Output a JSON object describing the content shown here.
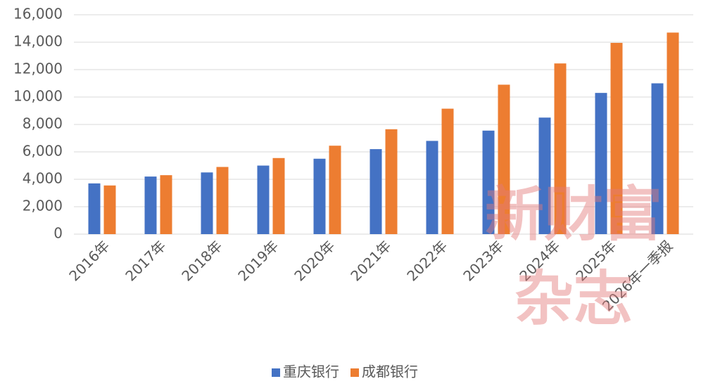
{
  "chart_data": {
    "type": "bar",
    "categories": [
      "2016年",
      "2017年",
      "2018年",
      "2019年",
      "2020年",
      "2021年",
      "2022年",
      "2023年",
      "2024年",
      "2025年",
      "2026年一季报"
    ],
    "series": [
      {
        "name": "重庆银行",
        "color": "#4472c4",
        "values": [
          3700,
          4200,
          4500,
          5000,
          5500,
          6200,
          6800,
          7550,
          8500,
          10300,
          11000
        ]
      },
      {
        "name": "成都银行",
        "color": "#ed7d31",
        "values": [
          3550,
          4300,
          4900,
          5550,
          6450,
          7650,
          9150,
          10900,
          12450,
          13950,
          14700
        ]
      }
    ],
    "ylim": [
      0,
      16000
    ],
    "yticks": [
      0,
      {
        "value": 2000,
        "label": "2,000"
      },
      {
        "value": 4000,
        "label": "4,000"
      },
      {
        "value": 6000,
        "label": "6,000"
      },
      {
        "value": 8000,
        "label": "8,000"
      },
      {
        "value": 10000,
        "label": "10,000"
      },
      {
        "value": 12000,
        "label": "12,000"
      },
      {
        "value": 14000,
        "label": "14,000"
      },
      {
        "value": 16000,
        "label": "16,000"
      }
    ],
    "grid": true,
    "legend": "bottom",
    "watermark": [
      "新财富",
      "杂志"
    ]
  }
}
